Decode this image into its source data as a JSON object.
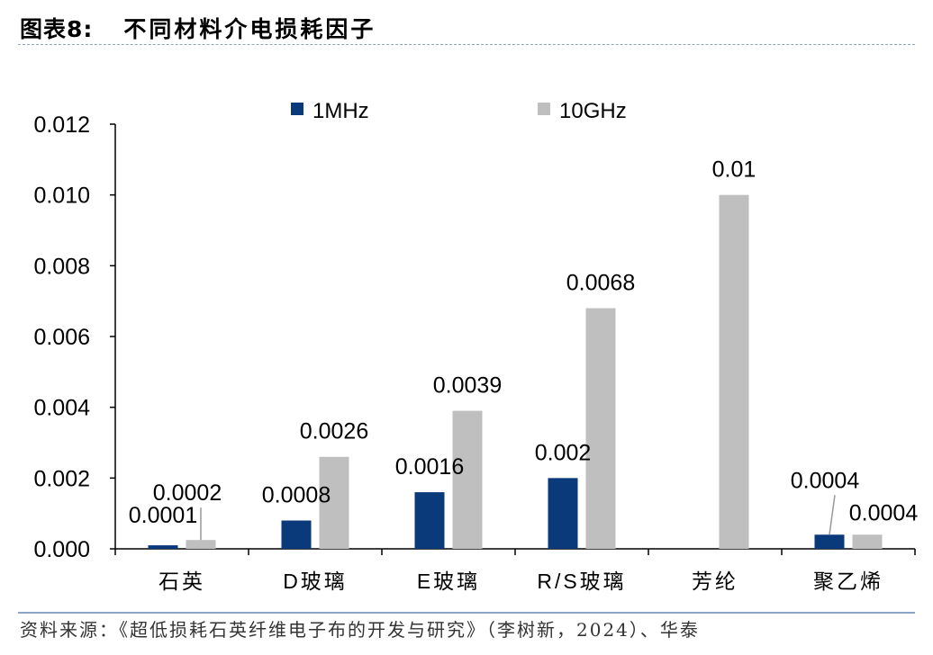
{
  "header": {
    "figure_label": "图表8:",
    "title": "不同材料介电损耗因子"
  },
  "footer": {
    "source": "资料来源：《超低损耗石英纤维电子布的开发与研究》（李树新，2024）、华泰"
  },
  "colors": {
    "series_1mhz": "#0a3a7a",
    "series_10ghz": "#bfbfbf",
    "axis": "#000000",
    "rule": "#8aa5c6"
  },
  "chart_data": {
    "type": "bar",
    "title": "不同材料介电损耗因子",
    "xlabel": "",
    "ylabel": "",
    "categories": [
      "石英",
      "D玻璃",
      "E玻璃",
      "R/S玻璃",
      "芳纶",
      "聚乙烯"
    ],
    "series": [
      {
        "name": "1MHz",
        "values": [
          0.0001,
          0.0008,
          0.0016,
          0.002,
          null,
          0.0004
        ],
        "labels": [
          "0.0001",
          "0.0008",
          "0.0016",
          "0.002",
          "",
          "0.0004"
        ]
      },
      {
        "name": "10GHz",
        "values": [
          0.00025,
          0.0026,
          0.0039,
          0.0068,
          0.01,
          0.0004
        ],
        "labels": [
          "0.0002",
          "0.0026",
          "0.0039",
          "0.0068",
          "0.01",
          "0.0004"
        ]
      }
    ],
    "ylim": [
      0,
      0.012
    ],
    "yticks": [
      0,
      0.002,
      0.004,
      0.006,
      0.008,
      0.01,
      0.012
    ],
    "ytick_labels": [
      "0.000",
      "0.002",
      "0.004",
      "0.006",
      "0.008",
      "0.010",
      "0.012"
    ],
    "legend_position": "top-center",
    "grid": false
  }
}
